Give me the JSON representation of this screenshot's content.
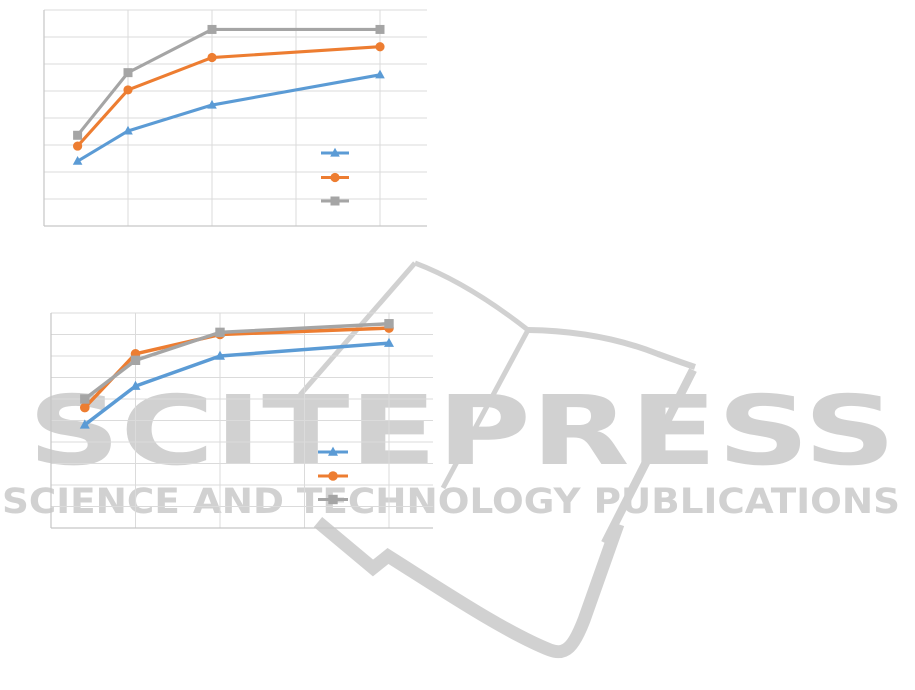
{
  "page": {
    "background_color": "#ffffff",
    "content": "Two line charts from a publication page, axis and legend text not visible"
  },
  "watermark": {
    "title": "SCITEPRESS",
    "subtitle": "SCIENCE AND TECHNOLOGY PUBLICATIONS",
    "color": "#d1d1d1",
    "logo": "open-book-outline-icon"
  },
  "chart_data": [
    {
      "type": "line",
      "title": "",
      "xlabel": "",
      "ylabel": "",
      "x": [
        10,
        25,
        50,
        100
      ],
      "axes": {
        "x_gridline_values": [
          0,
          25,
          50,
          75,
          100
        ],
        "y_gridline_intervals": 8,
        "x_tick_labels_visible": false,
        "y_tick_labels_visible": false,
        "grid": true
      },
      "series": [
        {
          "name": "series-blue-triangle",
          "color": "#5B9BD5",
          "marker": "triangle",
          "y_frac": [
            0.3,
            0.44,
            0.56,
            0.7
          ]
        },
        {
          "name": "series-orange-circle",
          "color": "#ED7D31",
          "marker": "circle",
          "y_frac": [
            0.37,
            0.63,
            0.78,
            0.83
          ]
        },
        {
          "name": "series-gray-square",
          "color": "#A5A5A5",
          "marker": "square",
          "y_frac": [
            0.42,
            0.71,
            0.91,
            0.91
          ]
        }
      ],
      "legend": {
        "visible": true,
        "labels_visible": false,
        "labels": [
          "",
          "",
          ""
        ],
        "position": "center-right"
      }
    },
    {
      "type": "line",
      "title": "",
      "xlabel": "",
      "ylabel": "",
      "x": [
        10,
        25,
        50,
        100
      ],
      "axes": {
        "x_gridline_values": [
          0,
          25,
          50,
          75,
          100
        ],
        "y_gridline_intervals": 10,
        "x_tick_labels_visible": false,
        "y_tick_labels_visible": false,
        "grid": true
      },
      "series": [
        {
          "name": "series-blue-triangle",
          "color": "#5B9BD5",
          "marker": "triangle",
          "y_frac": [
            0.48,
            0.66,
            0.8,
            0.86
          ]
        },
        {
          "name": "series-orange-circle",
          "color": "#ED7D31",
          "marker": "circle",
          "y_frac": [
            0.56,
            0.81,
            0.9,
            0.93
          ]
        },
        {
          "name": "series-gray-square",
          "color": "#A5A5A5",
          "marker": "square",
          "y_frac": [
            0.6,
            0.78,
            0.91,
            0.95
          ]
        }
      ],
      "legend": {
        "visible": true,
        "labels_visible": false,
        "labels": [
          "",
          "",
          ""
        ],
        "position": "center-right"
      }
    }
  ],
  "style": {
    "gridline_color": "#dbdbdb",
    "axis_color": "#c6c6c6"
  }
}
